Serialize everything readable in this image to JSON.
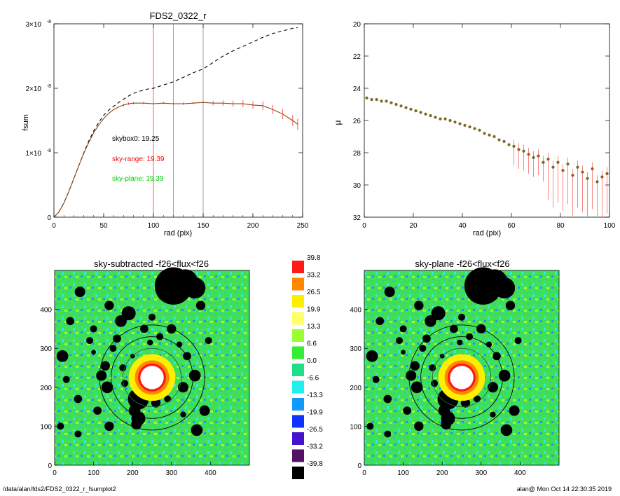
{
  "top_left": {
    "title": "FDS2_0322_r",
    "xlabel": "rad (pix)",
    "ylabel": "fsum",
    "xticks": [
      "0",
      "50",
      "100",
      "150",
      "200",
      "250"
    ],
    "yticks_mant": [
      "0",
      "1×10",
      "2×10",
      "3×10"
    ],
    "yticks_exp": [
      "",
      "-8",
      "-8",
      "-8"
    ],
    "sky_texts": [
      {
        "label": "skybox0: 19.25",
        "color": "#000000"
      },
      {
        "label": "sky-range: 19.39",
        "color": "#ff0000"
      },
      {
        "label": "sky-plane: 19.39",
        "color": "#00cc00"
      }
    ]
  },
  "top_right": {
    "xlabel": "rad (pix)",
    "ylabel": "μ",
    "xticks": [
      "0",
      "20",
      "40",
      "60",
      "80",
      "100"
    ],
    "yticks": [
      "20",
      "22",
      "24",
      "26",
      "28",
      "30",
      "32"
    ]
  },
  "image_left": {
    "title": "sky-subtracted -f26<flux<f26",
    "xticks": [
      "0",
      "100",
      "200",
      "300",
      "400"
    ],
    "yticks": [
      "0",
      "100",
      "200",
      "300",
      "400"
    ]
  },
  "image_right": {
    "title": "sky-plane -f26<flux<f26",
    "xticks": [
      "0",
      "100",
      "200",
      "300",
      "400"
    ],
    "yticks": [
      "0",
      "100",
      "200",
      "300",
      "400"
    ]
  },
  "colorbar": {
    "entries": [
      {
        "label": "39.8",
        "color": "#ff1a1a"
      },
      {
        "label": "33.2",
        "color": "#ff8800"
      },
      {
        "label": "26.5",
        "color": "#ffee00"
      },
      {
        "label": "19.9",
        "color": "#ffff66"
      },
      {
        "label": "13.3",
        "color": "#99ff33"
      },
      {
        "label": "6.6",
        "color": "#33ee33"
      },
      {
        "label": "0.0",
        "color": "#22dd88"
      },
      {
        "label": "-6.6",
        "color": "#22eeee"
      },
      {
        "label": "-13.3",
        "color": "#1199ff"
      },
      {
        "label": "-19.9",
        "color": "#1133ff"
      },
      {
        "label": "-26.5",
        "color": "#4411cc"
      },
      {
        "label": "-33.2",
        "color": "#551166"
      },
      {
        "label": "-39.8",
        "color": "#000000"
      }
    ]
  },
  "footer": {
    "path": "/data/alan/fds2/FDS2_0322_r_fsumplot2",
    "stamp": "alan@  Mon Oct 14 22:30:35 2019"
  },
  "chart_data": [
    {
      "type": "line",
      "title": "FDS2_0322_r",
      "xlabel": "rad (pix)",
      "ylabel": "fsum",
      "xlim": [
        0,
        250
      ],
      "ylim": [
        0,
        3e-08
      ],
      "vlines": [
        100,
        120,
        150
      ],
      "series": [
        {
          "x": [
            0,
            5,
            10,
            15,
            20,
            25,
            30,
            35,
            40,
            45,
            50,
            55,
            60,
            65,
            70,
            75,
            80,
            85,
            90,
            95,
            100,
            110,
            120,
            130,
            140,
            150,
            160,
            170,
            180,
            190,
            200,
            210,
            220,
            230,
            240,
            245
          ],
          "y": [
            0,
            8e-10,
            2.2e-09,
            4e-09,
            6e-09,
            8e-09,
            1e-08,
            1.18e-08,
            1.34e-08,
            1.47e-08,
            1.58e-08,
            1.66e-08,
            1.72e-08,
            1.78e-08,
            1.83e-08,
            1.88e-08,
            1.92e-08,
            1.95e-08,
            1.97e-08,
            1.99e-08,
            2e-08,
            2.05e-08,
            2.1e-08,
            2.17e-08,
            2.24e-08,
            2.3e-08,
            2.4e-08,
            2.5e-08,
            2.58e-08,
            2.65e-08,
            2.72e-08,
            2.79e-08,
            2.85e-08,
            2.89e-08,
            2.93e-08,
            2.94e-08
          ],
          "color": "#000000",
          "dash": true
        },
        {
          "x": [
            0,
            5,
            10,
            15,
            20,
            25,
            30,
            35,
            40,
            45,
            50,
            55,
            60,
            65,
            70,
            75,
            80,
            90,
            100,
            110,
            120,
            130,
            140,
            150,
            160,
            170,
            180,
            190,
            200,
            210,
            220,
            230,
            240,
            245
          ],
          "y": [
            0,
            8e-10,
            2.2e-09,
            4e-09,
            6e-09,
            8e-09,
            9.9e-09,
            1.16e-08,
            1.31e-08,
            1.43e-08,
            1.53e-08,
            1.61e-08,
            1.67e-08,
            1.71e-08,
            1.74e-08,
            1.76e-08,
            1.77e-08,
            1.77e-08,
            1.76e-08,
            1.77e-08,
            1.76e-08,
            1.76e-08,
            1.77e-08,
            1.78e-08,
            1.77e-08,
            1.77e-08,
            1.76e-08,
            1.76e-08,
            1.74e-08,
            1.73e-08,
            1.67e-08,
            1.6e-08,
            1.5e-08,
            1.44e-08
          ],
          "color": "#8b4513",
          "errors": true
        }
      ]
    },
    {
      "type": "scatter",
      "xlabel": "rad (pix)",
      "ylabel": "μ",
      "xlim": [
        0,
        100
      ],
      "ylim": [
        32,
        20
      ],
      "series": [
        {
          "x": [
            1,
            3,
            5,
            7,
            9,
            11,
            13,
            15,
            17,
            19,
            21,
            23,
            25,
            27,
            29,
            31,
            33,
            35,
            37,
            39,
            41,
            43,
            45,
            47,
            49,
            51,
            53,
            55,
            57,
            59,
            61,
            63,
            65,
            67,
            69,
            71,
            73,
            75,
            77,
            79,
            81,
            83,
            85,
            87,
            89,
            91,
            93,
            95,
            97,
            99
          ],
          "y": [
            24.6,
            24.7,
            24.7,
            24.8,
            24.8,
            24.9,
            25.0,
            25.1,
            25.2,
            25.3,
            25.4,
            25.5,
            25.6,
            25.7,
            25.8,
            25.9,
            25.9,
            26.0,
            26.1,
            26.2,
            26.3,
            26.4,
            26.5,
            26.6,
            26.8,
            26.9,
            27.0,
            27.2,
            27.3,
            27.5,
            27.6,
            27.8,
            27.9,
            28.1,
            28.3,
            28.2,
            28.6,
            28.4,
            28.9,
            28.6,
            29.1,
            28.7,
            29.4,
            28.9,
            29.2,
            29.6,
            29.0,
            29.8,
            29.5,
            29.3
          ],
          "color": "#8b6a00"
        }
      ]
    },
    {
      "type": "heatmap",
      "title": "sky-subtracted -f26<flux<f26",
      "xlim": [
        0,
        500
      ],
      "ylim": [
        0,
        500
      ]
    },
    {
      "type": "heatmap",
      "title": "sky-plane -f26<flux<f26",
      "xlim": [
        0,
        500
      ],
      "ylim": [
        0,
        500
      ]
    }
  ]
}
